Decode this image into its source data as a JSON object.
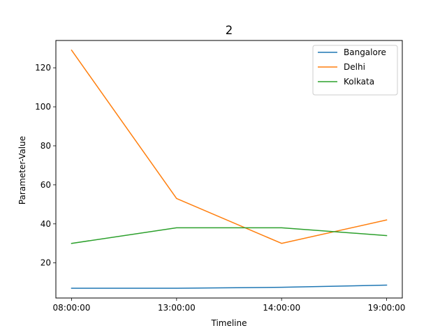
{
  "chart_data": {
    "type": "line",
    "title": "2",
    "xlabel": "Timeline",
    "ylabel": "Parameter-Value",
    "categories": [
      "08:00:00",
      "13:00:00",
      "14:00:00",
      "19:00:00"
    ],
    "ylim": [
      2,
      134
    ],
    "yticks": [
      20,
      40,
      60,
      80,
      100,
      120
    ],
    "grid": false,
    "legend_position": "top-right",
    "series": [
      {
        "name": "Bangalore",
        "color": "#1f77b4",
        "values": [
          7,
          7,
          7.5,
          8.6
        ]
      },
      {
        "name": "Delhi",
        "color": "#ff7f0e",
        "values": [
          129,
          53,
          30,
          42
        ]
      },
      {
        "name": "Kolkata",
        "color": "#2ca02c",
        "values": [
          30,
          38,
          38,
          34
        ]
      }
    ]
  }
}
